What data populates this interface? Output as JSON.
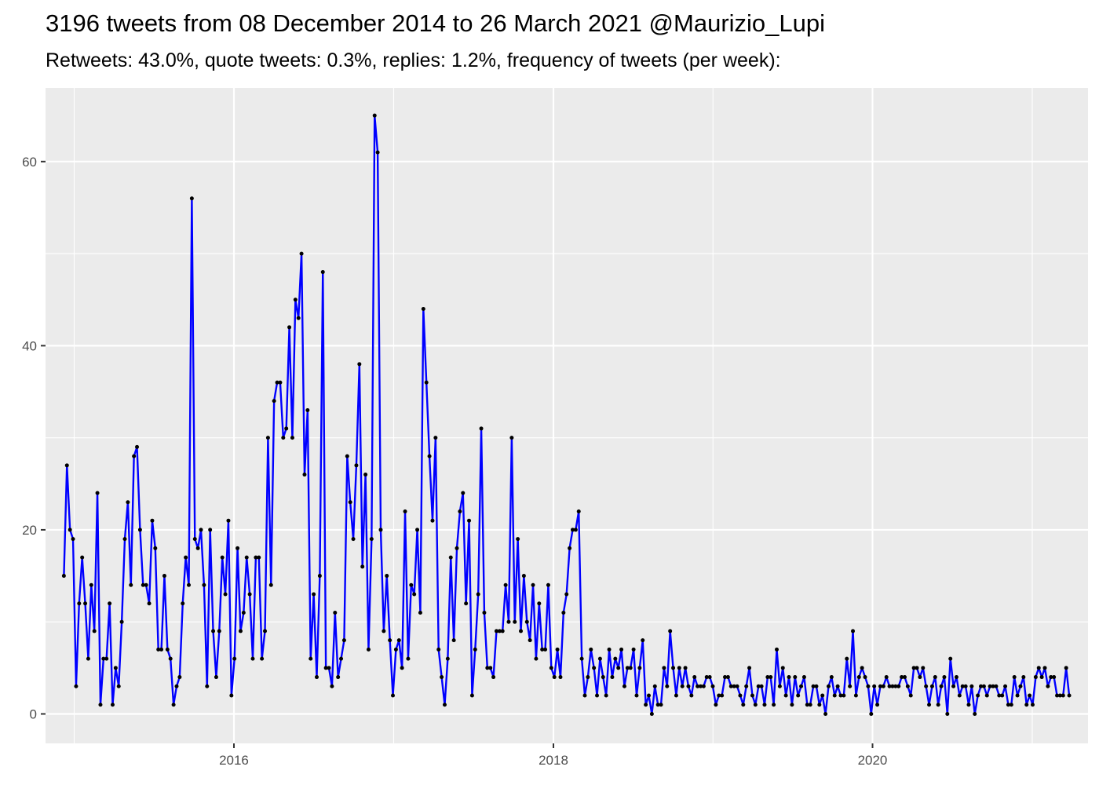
{
  "chart_data": {
    "type": "line",
    "title": "3196 tweets from 08 December 2014 to 26 March 2021 @Maurizio_Lupi",
    "subtitle": "Retweets: 43.0%, quote tweets: 0.3%, replies: 1.2%, frequency of tweets (per week):",
    "xlabel": "",
    "ylabel": "",
    "x_start": "2014-12-08",
    "x_end": "2021-03-26",
    "xlim": [
      "2014-10-27",
      "2021-05-08"
    ],
    "ylim": [
      -3.2,
      68.0
    ],
    "x_ticks": [
      {
        "date": "2016-01-01",
        "label": "2016"
      },
      {
        "date": "2018-01-01",
        "label": "2018"
      },
      {
        "date": "2020-01-01",
        "label": "2020"
      }
    ],
    "y_ticks": [
      0,
      20,
      40,
      60
    ],
    "grid": true,
    "line_color": "#0000ff",
    "point_color": "#000000",
    "panel_background": "#ebebeb",
    "grid_color": "#ffffff",
    "series": [
      {
        "values": [
          15,
          27,
          20,
          19,
          3,
          12,
          17,
          12,
          6,
          14,
          9,
          24,
          1,
          6,
          6,
          12,
          1,
          5,
          3,
          10,
          19,
          23,
          14,
          28,
          29,
          20,
          14,
          14,
          12,
          21,
          18,
          7,
          7,
          15,
          7,
          6,
          1,
          3,
          4,
          12,
          17,
          14,
          56,
          19,
          18,
          20,
          14,
          3,
          20,
          9,
          4,
          9,
          17,
          13,
          21,
          2,
          6,
          18,
          9,
          11,
          17,
          13,
          6,
          17,
          17,
          6,
          9,
          30,
          14,
          34,
          36,
          36,
          30,
          31,
          42,
          30,
          45,
          43,
          50,
          26,
          33,
          6,
          13,
          4,
          15,
          48,
          5,
          5,
          3,
          11,
          4,
          6,
          8,
          28,
          23,
          19,
          27,
          38,
          16,
          26,
          7,
          19,
          65,
          61,
          20,
          9,
          15,
          8,
          2,
          7,
          8,
          5,
          22,
          6,
          14,
          13,
          20,
          11,
          44,
          36,
          28,
          21,
          30,
          7,
          4,
          1,
          6,
          17,
          8,
          18,
          22,
          24,
          12,
          21,
          2,
          7,
          13,
          31,
          11,
          5,
          5,
          4,
          9,
          9,
          9,
          14,
          10,
          30,
          10,
          19,
          9,
          15,
          10,
          8,
          14,
          6,
          12,
          7,
          7,
          14,
          5,
          4,
          7,
          4,
          11,
          13,
          18,
          20,
          20,
          22,
          6,
          2,
          4,
          7,
          5,
          2,
          6,
          4,
          2,
          7,
          4,
          6,
          5,
          7,
          3,
          5,
          5,
          7,
          2,
          5,
          8,
          1,
          2,
          0,
          3,
          1,
          1,
          5,
          3,
          9,
          5,
          2,
          5,
          3,
          5,
          3,
          2,
          4,
          3,
          3,
          3,
          4,
          4,
          3,
          1,
          2,
          2,
          4,
          4,
          3,
          3,
          3,
          2,
          1,
          3,
          5,
          2,
          1,
          3,
          3,
          1,
          4,
          4,
          1,
          7,
          3,
          5,
          2,
          4,
          1,
          4,
          2,
          3,
          4,
          1,
          1,
          3,
          3,
          1,
          2,
          0,
          3,
          4,
          2,
          3,
          2,
          2,
          6,
          3,
          9,
          2,
          4,
          5,
          4,
          3,
          0,
          3,
          1,
          3,
          3,
          4,
          3,
          3,
          3,
          3,
          4,
          4,
          3,
          2,
          5,
          5,
          4,
          5,
          3,
          1,
          3,
          4,
          1,
          3,
          4,
          0,
          6,
          3,
          4,
          2,
          3,
          3,
          1,
          3,
          0,
          2,
          3,
          3,
          2,
          3,
          3,
          3,
          2,
          2,
          3,
          1,
          1,
          4,
          2,
          3,
          4,
          1,
          2,
          1,
          4,
          5,
          4,
          5,
          3,
          4,
          4,
          2,
          2,
          2,
          5,
          2
        ]
      }
    ]
  }
}
